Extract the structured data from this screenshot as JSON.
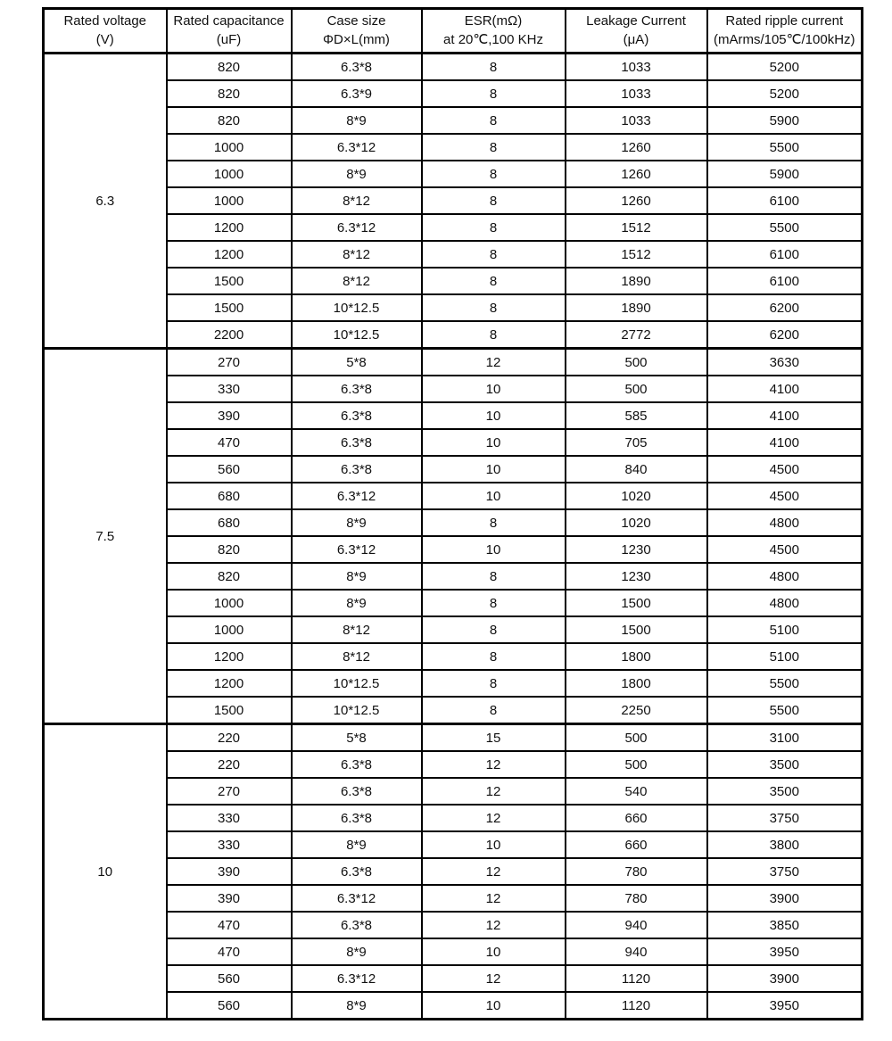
{
  "table": {
    "headers": [
      {
        "line1": "Rated voltage",
        "line2": "(V)"
      },
      {
        "line1": "Rated capacitance",
        "line2": "(uF)"
      },
      {
        "line1": "Case size",
        "line2": "ΦD×L(mm)"
      },
      {
        "line1": "ESR(mΩ)",
        "line2": "at 20℃,100 KHz"
      },
      {
        "line1": "Leakage Current",
        "line2": "(μA)"
      },
      {
        "line1": "Rated ripple current",
        "line2": "(mArms/105℃/100kHz)"
      }
    ],
    "column_names": [
      "rated_voltage",
      "rated_capacitance",
      "case_size",
      "esr",
      "leakage_current",
      "rated_ripple_current"
    ],
    "groups": [
      {
        "voltage": "6.3",
        "rows": [
          [
            "820",
            "6.3*8",
            "8",
            "1033",
            "5200"
          ],
          [
            "820",
            "6.3*9",
            "8",
            "1033",
            "5200"
          ],
          [
            "820",
            "8*9",
            "8",
            "1033",
            "5900"
          ],
          [
            "1000",
            "6.3*12",
            "8",
            "1260",
            "5500"
          ],
          [
            "1000",
            "8*9",
            "8",
            "1260",
            "5900"
          ],
          [
            "1000",
            "8*12",
            "8",
            "1260",
            "6100"
          ],
          [
            "1200",
            "6.3*12",
            "8",
            "1512",
            "5500"
          ],
          [
            "1200",
            "8*12",
            "8",
            "1512",
            "6100"
          ],
          [
            "1500",
            "8*12",
            "8",
            "1890",
            "6100"
          ],
          [
            "1500",
            "10*12.5",
            "8",
            "1890",
            "6200"
          ],
          [
            "2200",
            "10*12.5",
            "8",
            "2772",
            "6200"
          ]
        ]
      },
      {
        "voltage": "7.5",
        "rows": [
          [
            "270",
            "5*8",
            "12",
            "500",
            "3630"
          ],
          [
            "330",
            "6.3*8",
            "10",
            "500",
            "4100"
          ],
          [
            "390",
            "6.3*8",
            "10",
            "585",
            "4100"
          ],
          [
            "470",
            "6.3*8",
            "10",
            "705",
            "4100"
          ],
          [
            "560",
            "6.3*8",
            "10",
            "840",
            "4500"
          ],
          [
            "680",
            "6.3*12",
            "10",
            "1020",
            "4500"
          ],
          [
            "680",
            "8*9",
            "8",
            "1020",
            "4800"
          ],
          [
            "820",
            "6.3*12",
            "10",
            "1230",
            "4500"
          ],
          [
            "820",
            "8*9",
            "8",
            "1230",
            "4800"
          ],
          [
            "1000",
            "8*9",
            "8",
            "1500",
            "4800"
          ],
          [
            "1000",
            "8*12",
            "8",
            "1500",
            "5100"
          ],
          [
            "1200",
            "8*12",
            "8",
            "1800",
            "5100"
          ],
          [
            "1200",
            "10*12.5",
            "8",
            "1800",
            "5500"
          ],
          [
            "1500",
            "10*12.5",
            "8",
            "2250",
            "5500"
          ]
        ]
      },
      {
        "voltage": "10",
        "rows": [
          [
            "220",
            "5*8",
            "15",
            "500",
            "3100"
          ],
          [
            "220",
            "6.3*8",
            "12",
            "500",
            "3500"
          ],
          [
            "270",
            "6.3*8",
            "12",
            "540",
            "3500"
          ],
          [
            "330",
            "6.3*8",
            "12",
            "660",
            "3750"
          ],
          [
            "330",
            "8*9",
            "10",
            "660",
            "3800"
          ],
          [
            "390",
            "6.3*8",
            "12",
            "780",
            "3750"
          ],
          [
            "390",
            "6.3*12",
            "12",
            "780",
            "3900"
          ],
          [
            "470",
            "6.3*8",
            "12",
            "940",
            "3850"
          ],
          [
            "470",
            "8*9",
            "10",
            "940",
            "3950"
          ],
          [
            "560",
            "6.3*12",
            "12",
            "1120",
            "3900"
          ],
          [
            "560",
            "8*9",
            "10",
            "1120",
            "3950"
          ]
        ]
      }
    ]
  },
  "colors": {
    "border": "#000000",
    "background": "#ffffff",
    "text": "#111111"
  }
}
